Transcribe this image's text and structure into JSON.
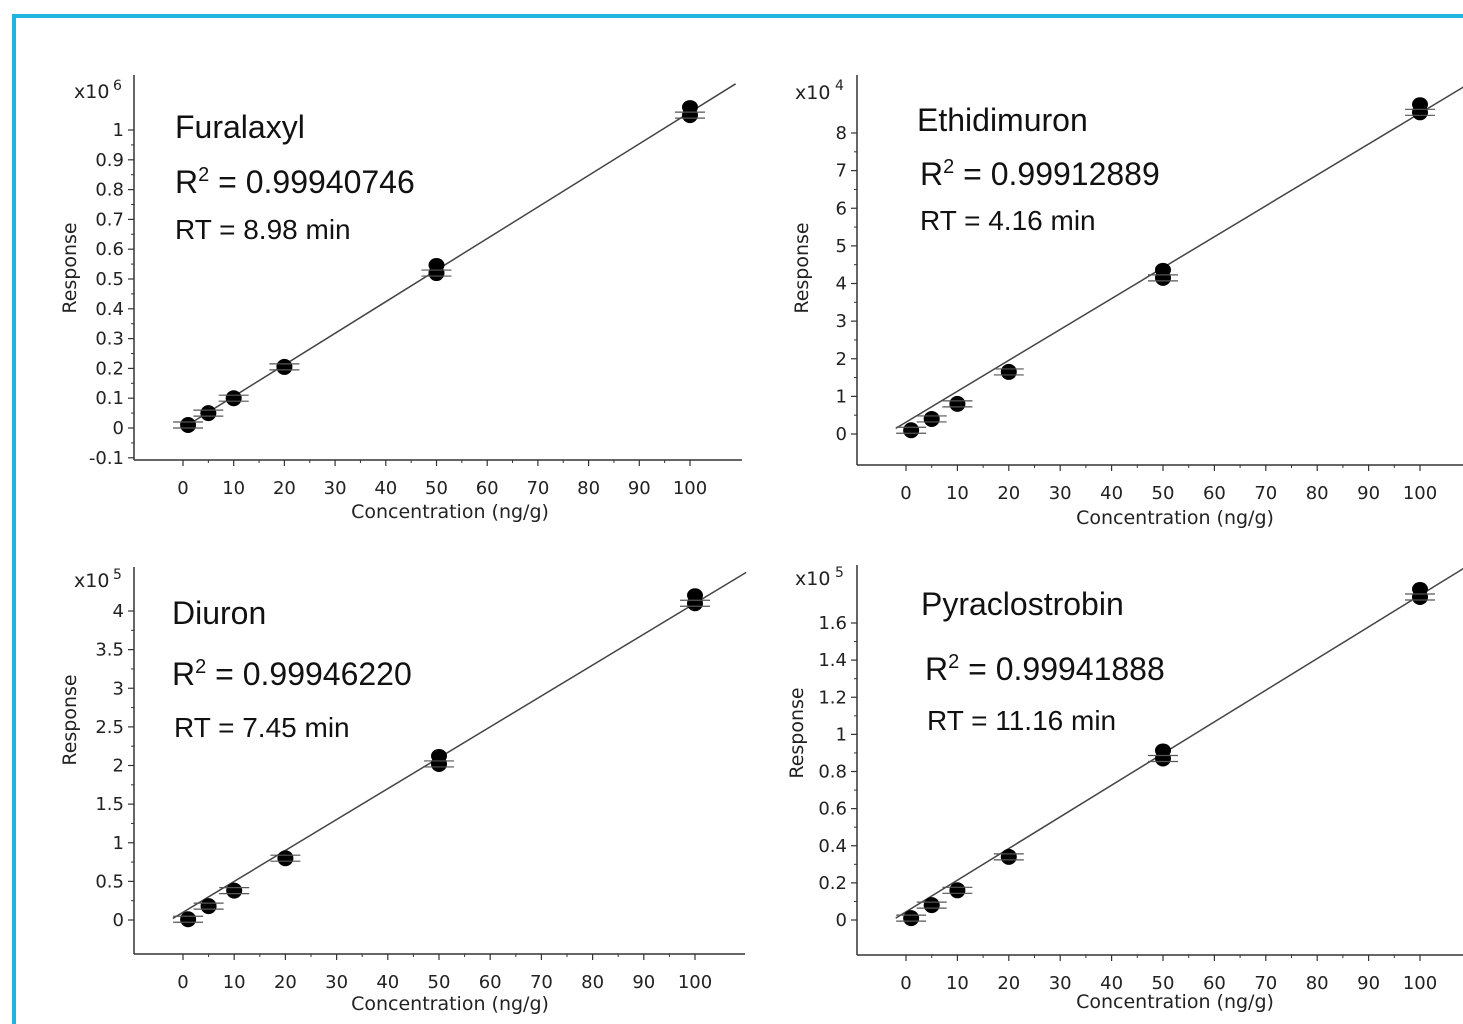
{
  "frame_color": "#1fb5de",
  "chart_data": [
    {
      "type": "scatter",
      "compound": "Furalaxyl",
      "r2_label": "R",
      "r2_sup": "2",
      "r2_value": " = 0.99940746",
      "rt": "RT = 8.98 min",
      "xlabel": "Concentration (ng/g)",
      "ylabel": "Response",
      "y_multiplier_base": "x10",
      "y_multiplier_exp": "6",
      "xlim": [
        -5,
        110
      ],
      "ylim": [
        -0.11,
        1.12
      ],
      "x_ticks": [
        0,
        10,
        20,
        30,
        40,
        50,
        60,
        70,
        80,
        90,
        100
      ],
      "y_ticks": [
        -0.1,
        0,
        0.1,
        0.2,
        0.3,
        0.4,
        0.5,
        0.6,
        0.7,
        0.8,
        0.9,
        1
      ],
      "y_tick_labels": [
        "-0.1",
        "0",
        "0.1",
        "0.2",
        "0.3",
        "0.4",
        "0.5",
        "0.6",
        "0.7",
        "0.8",
        "0.9",
        "1"
      ],
      "x": [
        1,
        5,
        10,
        20,
        50,
        100
      ],
      "y": [
        0.01,
        0.05,
        0.1,
        0.205,
        0.52,
        1.05
      ],
      "fit_x": [
        0,
        109
      ],
      "fit_y": [
        0.0,
        1.155
      ]
    },
    {
      "type": "scatter",
      "compound": "Ethidimuron",
      "r2_label": "R",
      "r2_sup": "2",
      "r2_value": " = 0.99912889",
      "rt": "RT = 4.16 min",
      "xlabel": "Concentration (ng/g)",
      "ylabel": "Response",
      "y_multiplier_base": "x10",
      "y_multiplier_exp": "4",
      "xlim": [
        -5,
        110
      ],
      "ylim": [
        -0.8,
        9.2
      ],
      "x_ticks": [
        0,
        10,
        20,
        30,
        40,
        50,
        60,
        70,
        80,
        90,
        100
      ],
      "y_ticks": [
        0,
        1,
        2,
        3,
        4,
        5,
        6,
        7,
        8
      ],
      "y_tick_labels": [
        "0",
        "1",
        "2",
        "3",
        "4",
        "5",
        "6",
        "7",
        "8"
      ],
      "x": [
        1,
        5,
        10,
        20,
        50,
        100
      ],
      "y": [
        0.1,
        0.4,
        0.8,
        1.65,
        4.15,
        8.55
      ],
      "fit_x": [
        -2,
        110
      ],
      "fit_y": [
        0.15,
        9.35
      ]
    },
    {
      "type": "scatter",
      "compound": "Diuron",
      "r2_label": "R",
      "r2_sup": "2",
      "r2_value": " = 0.99946220",
      "rt": "RT = 7.45 min",
      "xlabel": "Concentration (ng/g)",
      "ylabel": "Response",
      "y_multiplier_base": "x10",
      "y_multiplier_exp": "5",
      "xlim": [
        -5,
        110
      ],
      "ylim": [
        -0.45,
        4.4
      ],
      "x_ticks": [
        0,
        10,
        20,
        30,
        40,
        50,
        60,
        70,
        80,
        90,
        100
      ],
      "y_ticks": [
        0,
        0.5,
        1,
        1.5,
        2,
        2.5,
        3,
        3.5,
        4
      ],
      "y_tick_labels": [
        "0",
        "0.5",
        "1",
        "1.5",
        "2",
        "2.5",
        "3",
        "3.5",
        "4"
      ],
      "x": [
        1,
        5,
        10,
        20,
        50,
        100
      ],
      "y": [
        0.01,
        0.18,
        0.38,
        0.8,
        2.02,
        4.1
      ],
      "fit_x": [
        -2,
        110
      ],
      "fit_y": [
        0.02,
        4.5
      ]
    },
    {
      "type": "scatter",
      "compound": "Pyraclostrobin",
      "r2_label": "R",
      "r2_sup": "2",
      "r2_value": " = 0.99941888",
      "rt": "RT = 11.16 min",
      "xlabel": "Concentration (ng/g)",
      "ylabel": "Response",
      "y_multiplier_base": "x10",
      "y_multiplier_exp": "5",
      "xlim": [
        -5,
        110
      ],
      "ylim": [
        -0.18,
        1.78
      ],
      "x_ticks": [
        0,
        10,
        20,
        30,
        40,
        50,
        60,
        70,
        80,
        90,
        100
      ],
      "y_ticks": [
        0,
        0.2,
        0.4,
        0.6,
        0.8,
        1,
        1.2,
        1.4,
        1.6
      ],
      "y_tick_labels": [
        "0",
        "0.2",
        "0.4",
        "0.6",
        "0.8",
        "1",
        "1.2",
        "1.4",
        "1.6"
      ],
      "x": [
        1,
        5,
        10,
        20,
        50,
        100
      ],
      "y": [
        0.01,
        0.08,
        0.16,
        0.34,
        0.87,
        1.74
      ],
      "fit_x": [
        -2,
        110
      ],
      "fit_y": [
        0.01,
        1.92
      ]
    }
  ]
}
